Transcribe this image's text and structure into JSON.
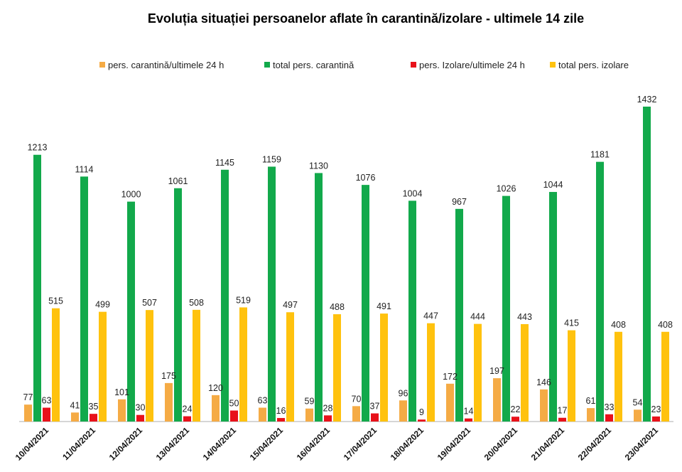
{
  "chart_data": {
    "type": "bar",
    "title": "Evoluția situației persoanelor aflate în carantină/izolare - ultimele 14 zile",
    "xlabel": "",
    "ylabel": "",
    "ylim": [
      0,
      1432
    ],
    "grid": false,
    "legend_position": "top",
    "categories": [
      "10/04/2021",
      "11/04/2021",
      "12/04/2021",
      "13/04/2021",
      "14/04/2021",
      "15/04/2021",
      "16/04/2021",
      "17/04/2021",
      "18/04/2021",
      "19/04/2021",
      "20/04/2021",
      "21/04/2021",
      "22/04/2021",
      "23/04/2021"
    ],
    "series": [
      {
        "name": "pers. carantină/ultimele 24 h",
        "color": "#F5AB45",
        "values": [
          77,
          41,
          101,
          175,
          120,
          63,
          59,
          70,
          96,
          172,
          197,
          146,
          61,
          54
        ]
      },
      {
        "name": "total pers. carantină",
        "color": "#12A94B",
        "values": [
          1213,
          1114,
          1000,
          1061,
          1145,
          1159,
          1130,
          1076,
          1004,
          967,
          1026,
          1044,
          1181,
          1432
        ]
      },
      {
        "name": "pers. Izolare/ultimele 24 h",
        "color": "#E8111A",
        "values": [
          63,
          35,
          30,
          24,
          50,
          16,
          28,
          37,
          9,
          14,
          22,
          17,
          33,
          23
        ]
      },
      {
        "name": "total pers. izolare",
        "color": "#FFC20E",
        "values": [
          515,
          499,
          507,
          508,
          519,
          497,
          488,
          491,
          447,
          444,
          443,
          415,
          408,
          408
        ]
      }
    ]
  }
}
